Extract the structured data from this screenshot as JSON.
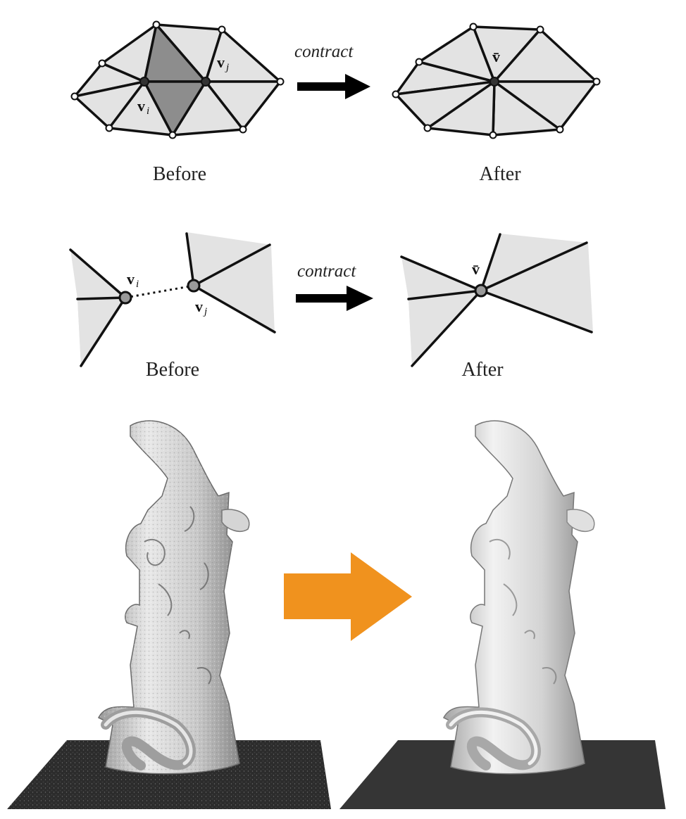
{
  "figure": {
    "row1": {
      "operation_label": "contract",
      "before_label": "Before",
      "after_label": "After",
      "vertex_i": "v",
      "vertex_i_sub": "i",
      "vertex_j": "v",
      "vertex_j_sub": "j",
      "merged_vertex": "v̄"
    },
    "row2": {
      "operation_label": "contract",
      "before_label": "Before",
      "after_label": "After",
      "vertex_i": "v",
      "vertex_i_sub": "i",
      "vertex_j": "v",
      "vertex_j_sub": "j",
      "merged_vertex": "v̄"
    },
    "row3": {
      "arrow_color": "#F0921E"
    }
  }
}
